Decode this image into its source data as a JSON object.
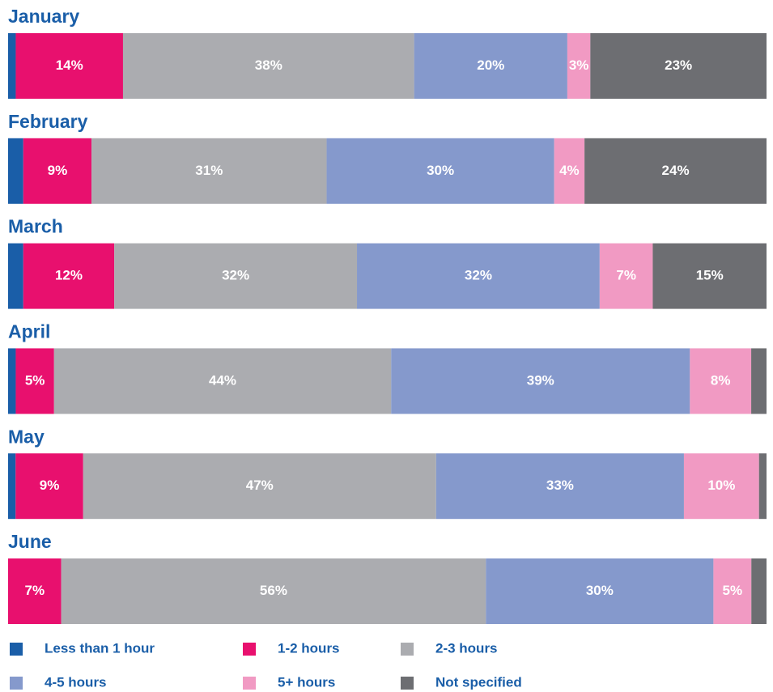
{
  "chart_data": {
    "type": "bar",
    "orientation": "horizontal",
    "stacked": true,
    "categories": [
      "January",
      "February",
      "March",
      "April",
      "May",
      "June"
    ],
    "series": [
      {
        "name": "Less than 1 hour",
        "color": "#1a5ea8",
        "values": [
          1,
          2,
          2,
          1,
          1,
          0
        ],
        "value_labels": [
          null,
          null,
          null,
          null,
          null,
          null
        ]
      },
      {
        "name": "1-2 hours",
        "color": "#e8106e",
        "values": [
          14,
          9,
          12,
          5,
          9,
          7
        ],
        "value_labels": [
          "14%",
          "9%",
          "12%",
          "5%",
          "9%",
          "7%"
        ]
      },
      {
        "name": "2-3 hours",
        "color": "#abacb0",
        "values": [
          38,
          31,
          32,
          44,
          47,
          56
        ],
        "value_labels": [
          "38%",
          "31%",
          "32%",
          "44%",
          "47%",
          "56%"
        ]
      },
      {
        "name": "4-5 hours",
        "color": "#8599cc",
        "values": [
          20,
          30,
          32,
          39,
          33,
          30
        ],
        "value_labels": [
          "20%",
          "30%",
          "32%",
          "39%",
          "33%",
          "30%"
        ]
      },
      {
        "name": "5+ hours",
        "color": "#f19ac3",
        "values": [
          3,
          4,
          7,
          8,
          10,
          5
        ],
        "value_labels": [
          "3%",
          "4%",
          "7%",
          "8%",
          "10%",
          "5%"
        ]
      },
      {
        "name": "Not specified",
        "color": "#6d6e72",
        "values": [
          23,
          24,
          15,
          2,
          1,
          2
        ],
        "value_labels": [
          "23%",
          "24%",
          "15%",
          null,
          null,
          null
        ]
      }
    ],
    "legend": "bottom"
  }
}
